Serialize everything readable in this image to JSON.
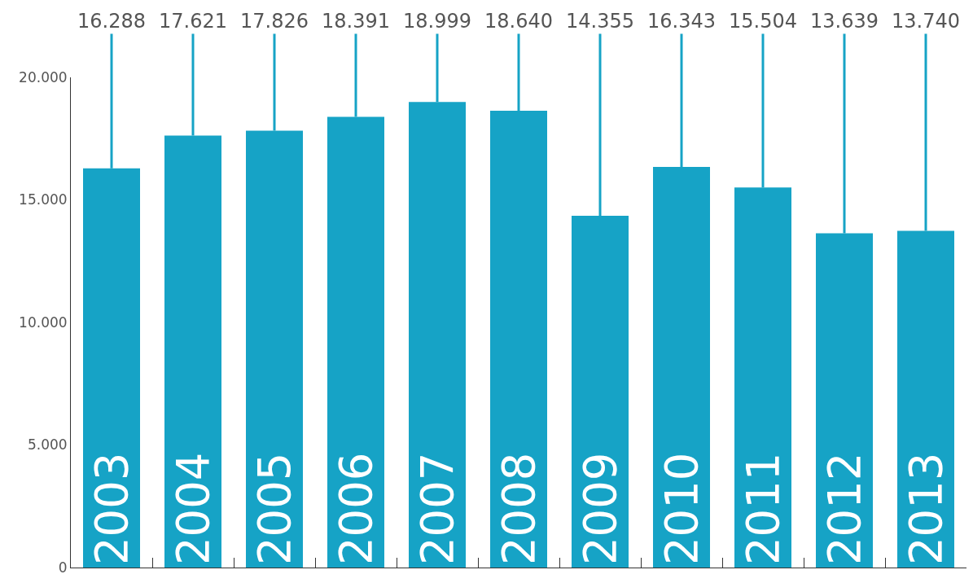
{
  "chart_data": {
    "type": "bar",
    "categories": [
      "2003",
      "2004",
      "2005",
      "2006",
      "2007",
      "2008",
      "2009",
      "2010",
      "2011",
      "2012",
      "2013"
    ],
    "values": [
      16288,
      17621,
      17826,
      18391,
      18999,
      18640,
      14355,
      16343,
      15504,
      13639,
      13740
    ],
    "value_labels": [
      "16.288",
      "17.621",
      "17.826",
      "18.391",
      "18.999",
      "18.640",
      "14.355",
      "16.343",
      "15.504",
      "13.639",
      "13.740"
    ],
    "color": "#16a3c6",
    "ylim": [
      0,
      20000
    ],
    "yticks": [
      {
        "value": 0,
        "label": "0"
      },
      {
        "value": 5000,
        "label": "5.000"
      },
      {
        "value": 10000,
        "label": "10.000"
      },
      {
        "value": 15000,
        "label": "15.000"
      },
      {
        "value": 20000,
        "label": "20.000"
      }
    ],
    "grid": false,
    "legend": false
  }
}
